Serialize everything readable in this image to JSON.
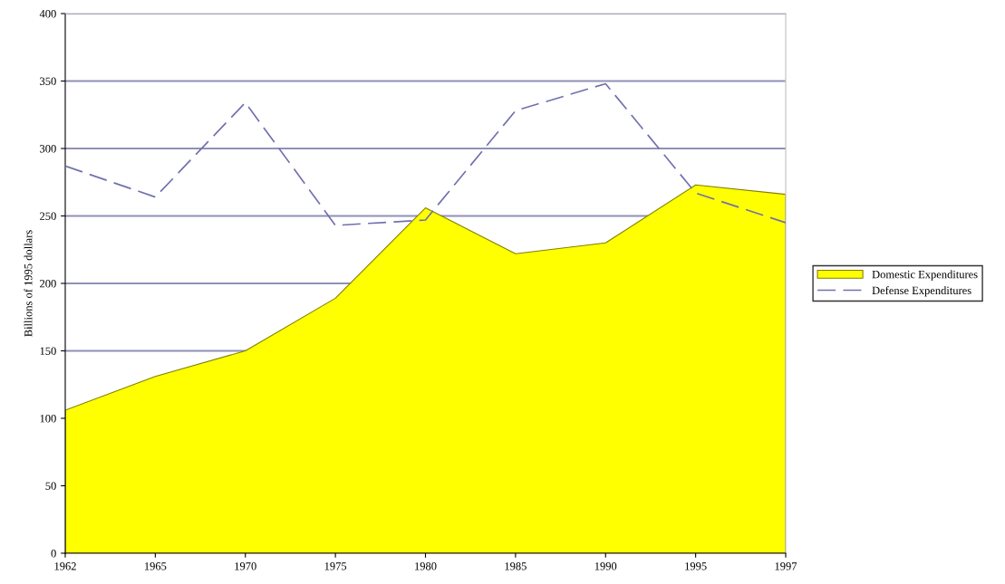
{
  "chart_data": {
    "type": "area",
    "ylabel": "Billions of 1995 dollars",
    "categories": [
      "1962",
      "1965",
      "1970",
      "1975",
      "1980",
      "1985",
      "1990",
      "1995",
      "1997"
    ],
    "series": [
      {
        "name": "Domestic Expenditures",
        "color": "#ffff00",
        "values": [
          106,
          131,
          150,
          189,
          256,
          222,
          230,
          273,
          266
        ]
      },
      {
        "name": "Defense Expenditures",
        "type": "line",
        "color": "#7070b0",
        "line_style": "dashed",
        "values": [
          287,
          264,
          334,
          243,
          247,
          328,
          348,
          267,
          245
        ]
      }
    ],
    "ylim": [
      0,
      400
    ],
    "yticks": [
      0,
      50,
      100,
      150,
      200,
      250,
      300,
      350,
      400
    ],
    "grid": "y",
    "legend": "right"
  }
}
